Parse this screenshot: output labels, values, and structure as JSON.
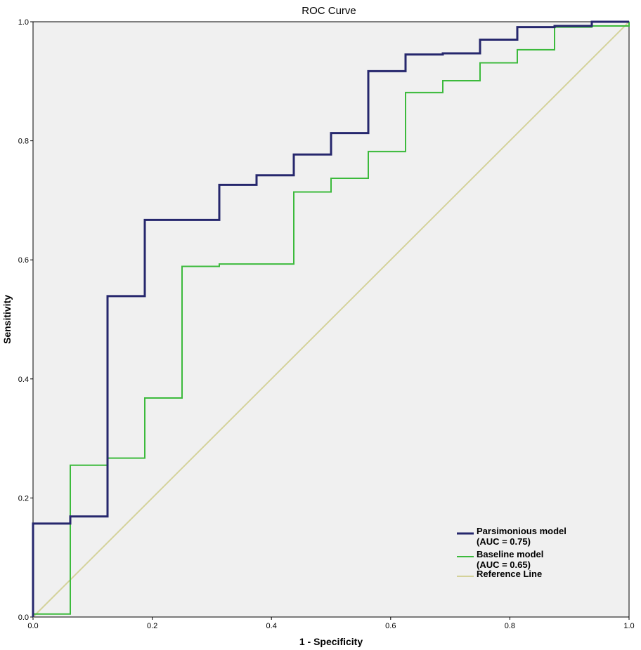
{
  "chart_data": {
    "type": "line",
    "title": "ROC Curve",
    "xlabel": "1 - Specificity",
    "ylabel": "Sensitivity",
    "xlim": [
      0,
      1
    ],
    "ylim": [
      0,
      1
    ],
    "x_ticks": [
      "0.0",
      "0.2",
      "0.4",
      "0.6",
      "0.8",
      "1.0"
    ],
    "y_ticks": [
      "0.0",
      "0.2",
      "0.4",
      "0.6",
      "0.8",
      "1.0"
    ],
    "grid": false,
    "legend_position": "bottom-right",
    "background_color": "#f0f0f0",
    "series": [
      {
        "name": "Parsimonious model",
        "name_line2": "(AUC = 0.75)",
        "color": "#26276d",
        "points": [
          [
            0,
            0
          ],
          [
            0,
            0.157
          ],
          [
            0.0625,
            0.157
          ],
          [
            0.0625,
            0.169
          ],
          [
            0.125,
            0.169
          ],
          [
            0.125,
            0.539
          ],
          [
            0.1875,
            0.539
          ],
          [
            0.1875,
            0.667
          ],
          [
            0.3125,
            0.667
          ],
          [
            0.3125,
            0.726
          ],
          [
            0.375,
            0.726
          ],
          [
            0.375,
            0.742
          ],
          [
            0.4375,
            0.742
          ],
          [
            0.4375,
            0.777
          ],
          [
            0.5,
            0.777
          ],
          [
            0.5,
            0.813
          ],
          [
            0.5625,
            0.813
          ],
          [
            0.5625,
            0.917
          ],
          [
            0.625,
            0.917
          ],
          [
            0.625,
            0.945
          ],
          [
            0.6875,
            0.945
          ],
          [
            0.6875,
            0.947
          ],
          [
            0.75,
            0.947
          ],
          [
            0.75,
            0.97
          ],
          [
            0.8125,
            0.97
          ],
          [
            0.8125,
            0.991
          ],
          [
            0.875,
            0.991
          ],
          [
            0.875,
            0.993
          ],
          [
            0.9375,
            0.993
          ],
          [
            0.9375,
            1.0
          ],
          [
            1.0,
            1.0
          ]
        ]
      },
      {
        "name": "Baseline model",
        "name_line2": "(AUC = 0.65)",
        "color": "#3cba3c",
        "points": [
          [
            0,
            0
          ],
          [
            0,
            0.005
          ],
          [
            0.0625,
            0.005
          ],
          [
            0.0625,
            0.255
          ],
          [
            0.125,
            0.255
          ],
          [
            0.125,
            0.267
          ],
          [
            0.1875,
            0.267
          ],
          [
            0.1875,
            0.368
          ],
          [
            0.25,
            0.368
          ],
          [
            0.25,
            0.589
          ],
          [
            0.3125,
            0.589
          ],
          [
            0.3125,
            0.593
          ],
          [
            0.4375,
            0.593
          ],
          [
            0.4375,
            0.714
          ],
          [
            0.5,
            0.714
          ],
          [
            0.5,
            0.737
          ],
          [
            0.5625,
            0.737
          ],
          [
            0.5625,
            0.782
          ],
          [
            0.625,
            0.782
          ],
          [
            0.625,
            0.881
          ],
          [
            0.6875,
            0.881
          ],
          [
            0.6875,
            0.901
          ],
          [
            0.75,
            0.901
          ],
          [
            0.75,
            0.931
          ],
          [
            0.8125,
            0.931
          ],
          [
            0.8125,
            0.953
          ],
          [
            0.875,
            0.953
          ],
          [
            0.875,
            0.991
          ],
          [
            0.9375,
            0.991
          ],
          [
            0.9375,
            0.993
          ],
          [
            1.0,
            0.993
          ],
          [
            1.0,
            1.0
          ]
        ]
      },
      {
        "name": "Reference Line",
        "name_line2": "",
        "color": "#d4d29a",
        "points": [
          [
            0,
            0
          ],
          [
            1,
            1
          ]
        ]
      }
    ]
  }
}
